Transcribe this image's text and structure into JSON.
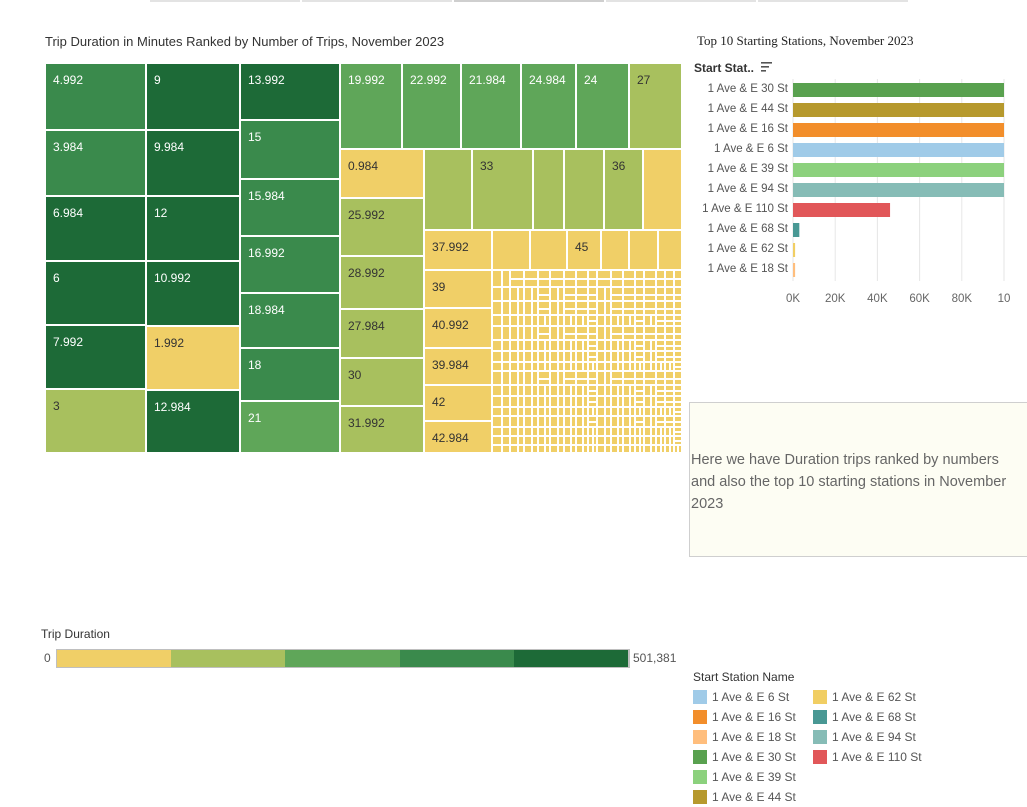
{
  "treemap": {
    "title": "Trip Duration in Minutes Ranked by Number of Trips, November 2023",
    "cells": [
      {
        "label": "4.992",
        "color": "#3a8a4c"
      },
      {
        "label": "3.984",
        "color": "#3a8a4c"
      },
      {
        "label": "6.984",
        "color": "#1d6a37"
      },
      {
        "label": "6",
        "color": "#1d6a37"
      },
      {
        "label": "7.992",
        "color": "#1d6a37"
      },
      {
        "label": "3",
        "color": "#a8c05e"
      },
      {
        "label": "9",
        "color": "#1d6a37"
      },
      {
        "label": "9.984",
        "color": "#1d6a37"
      },
      {
        "label": "12",
        "color": "#1d6a37"
      },
      {
        "label": "10.992",
        "color": "#1d6a37"
      },
      {
        "label": "1.992",
        "color": "#f0cf67"
      },
      {
        "label": "12.984",
        "color": "#1d6a37"
      },
      {
        "label": "13.992",
        "color": "#1d6a37"
      },
      {
        "label": "15",
        "color": "#3a8a4c"
      },
      {
        "label": "15.984",
        "color": "#3a8a4c"
      },
      {
        "label": "16.992",
        "color": "#3a8a4c"
      },
      {
        "label": "18.984",
        "color": "#3a8a4c"
      },
      {
        "label": "18",
        "color": "#3a8a4c"
      },
      {
        "label": "21",
        "color": "#5fa659"
      },
      {
        "label": "19.992",
        "color": "#5fa659"
      },
      {
        "label": "22.992",
        "color": "#5fa659"
      },
      {
        "label": "21.984",
        "color": "#5fa659"
      },
      {
        "label": "24.984",
        "color": "#5fa659"
      },
      {
        "label": "24",
        "color": "#5fa659"
      },
      {
        "label": "27",
        "color": "#a8c05e"
      },
      {
        "label": "0.984",
        "color": "#f0cf67"
      },
      {
        "label": "25.992",
        "color": "#a8c05e"
      },
      {
        "label": "28.992",
        "color": "#a8c05e"
      },
      {
        "label": "27.984",
        "color": "#a8c05e"
      },
      {
        "label": "30",
        "color": "#a8c05e"
      },
      {
        "label": "31.992",
        "color": "#a8c05e"
      },
      {
        "label": "",
        "color": "#a8c05e"
      },
      {
        "label": "33",
        "color": "#a8c05e"
      },
      {
        "label": "",
        "color": "#a8c05e"
      },
      {
        "label": "",
        "color": "#a8c05e"
      },
      {
        "label": "36",
        "color": "#a8c05e"
      },
      {
        "label": "",
        "color": "#f0cf67"
      },
      {
        "label": "37.992",
        "color": "#f0cf67"
      },
      {
        "label": "39",
        "color": "#f0cf67"
      },
      {
        "label": "40.992",
        "color": "#f0cf67"
      },
      {
        "label": "39.984",
        "color": "#f0cf67"
      },
      {
        "label": "42",
        "color": "#f0cf67"
      },
      {
        "label": "42.984",
        "color": "#f0cf67"
      },
      {
        "label": "",
        "color": "#f0cf67"
      },
      {
        "label": "",
        "color": "#f0cf67"
      },
      {
        "label": "45",
        "color": "#f0cf67"
      },
      {
        "label": "",
        "color": "#f0cf67"
      },
      {
        "label": "",
        "color": "#f0cf67"
      },
      {
        "label": "",
        "color": "#f0cf67"
      }
    ],
    "tail_color": "#f0cf67"
  },
  "bar_chart": {
    "title": "Top 10 Starting Stations, November  2023",
    "header": "Start Stat..",
    "chart_data": {
      "type": "bar",
      "orientation": "horizontal",
      "title": "Top 10 Starting Stations, November  2023",
      "categories": [
        "1 Ave & E 30 St",
        "1 Ave & E 44 St",
        "1 Ave & E 16 St",
        "1 Ave & E 6 St",
        "1 Ave & E 39 St",
        "1 Ave & E 94 St",
        "1 Ave & E 110 St",
        "1 Ave & E 68 St",
        "1 Ave & E 62 St",
        "1 Ave & E 18 St"
      ],
      "values": [
        100000,
        100000,
        100000,
        100000,
        100000,
        100000,
        46000,
        3000,
        1000,
        1000
      ],
      "colors": [
        "#59a14f",
        "#b6992d",
        "#f28e2b",
        "#a0cbe8",
        "#8cd17d",
        "#86bcb6",
        "#e15759",
        "#499894",
        "#f1ce63",
        "#ffbe7d"
      ],
      "xlim": [
        0,
        100000
      ],
      "xticks": [
        "0K",
        "20K",
        "40K",
        "60K",
        "80K",
        "10"
      ],
      "xlabel": "",
      "ylabel": "",
      "grid": true
    }
  },
  "note": {
    "text": "Here we have Duration trips ranked by numbers and also the top 10 starting stations in November 2023"
  },
  "duration_legend": {
    "title": "Trip Duration",
    "min": "0",
    "max": "501,381",
    "colors": [
      "#f0cf67",
      "#a8c05e",
      "#5fa659",
      "#3a8a4c",
      "#1d6a37"
    ]
  },
  "station_legend": {
    "title": "Start Station Name",
    "items": [
      {
        "label": "1 Ave & E 6 St",
        "color": "#a0cbe8"
      },
      {
        "label": "1 Ave & E 62 St",
        "color": "#f1ce63"
      },
      {
        "label": "1 Ave & E 16 St",
        "color": "#f28e2b"
      },
      {
        "label": "1 Ave & E 68 St",
        "color": "#499894"
      },
      {
        "label": "1 Ave & E 18 St",
        "color": "#ffbe7d"
      },
      {
        "label": "1 Ave & E 94 St",
        "color": "#86bcb6"
      },
      {
        "label": "1 Ave & E 30 St",
        "color": "#59a14f"
      },
      {
        "label": "1 Ave & E 110 St",
        "color": "#e15759"
      },
      {
        "label": "1 Ave & E 39 St",
        "color": "#8cd17d"
      },
      {
        "label": "",
        "color": ""
      },
      {
        "label": "1 Ave & E 44 St",
        "color": "#b6992d"
      }
    ]
  }
}
